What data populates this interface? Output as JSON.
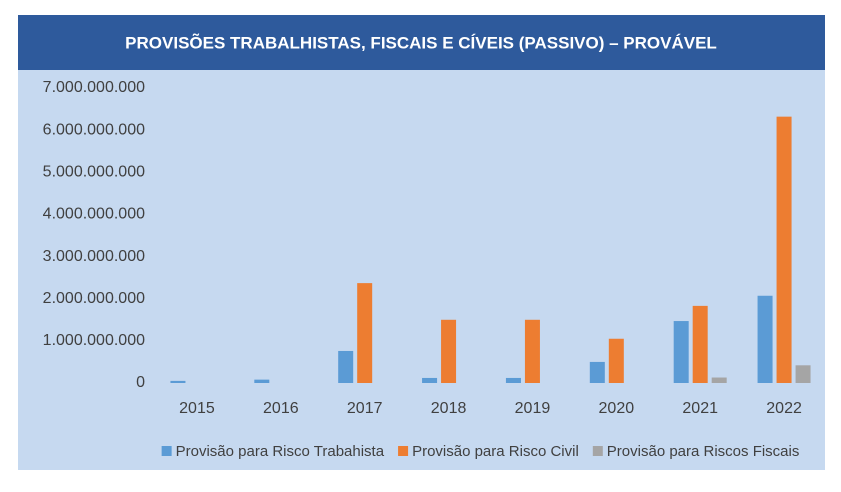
{
  "chart_data": {
    "type": "bar",
    "title": "PROVISÕES TRABALHISTAS, FISCAIS E CÍVEIS (PASSIVO) – PROVÁVEL",
    "categories": [
      "2015",
      "2016",
      "2017",
      "2018",
      "2019",
      "2020",
      "2021",
      "2022"
    ],
    "series": [
      {
        "name": "Provisão para Risco Trabahista",
        "color": "#5b9bd5",
        "values": [
          50000000,
          80000000,
          760000000,
          120000000,
          120000000,
          500000000,
          1470000000,
          2070000000
        ]
      },
      {
        "name": "Provisão para Risco Civil",
        "color": "#ed7d31",
        "values": [
          0,
          0,
          2370000000,
          1500000000,
          1500000000,
          1050000000,
          1830000000,
          6320000000
        ]
      },
      {
        "name": "Provisão para Riscos Fiscais",
        "color": "#a5a5a5",
        "values": [
          0,
          0,
          0,
          0,
          0,
          0,
          130000000,
          420000000
        ]
      }
    ],
    "ylim": [
      0,
      7000000000
    ],
    "yticks": [
      0,
      {
        "value": 1000000000,
        "label": "1.000.000.000"
      },
      {
        "value": 2000000000,
        "label": "2.000.000.000"
      },
      {
        "value": 3000000000,
        "label": "3.000.000.000"
      },
      {
        "value": 4000000000,
        "label": "4.000.000.000"
      },
      {
        "value": 5000000000,
        "label": "5.000.000.000"
      },
      {
        "value": 6000000000,
        "label": "6.000.000.000"
      },
      {
        "value": 7000000000,
        "label": "7.000.000.000"
      }
    ],
    "grid": false,
    "legend": "bottom"
  }
}
